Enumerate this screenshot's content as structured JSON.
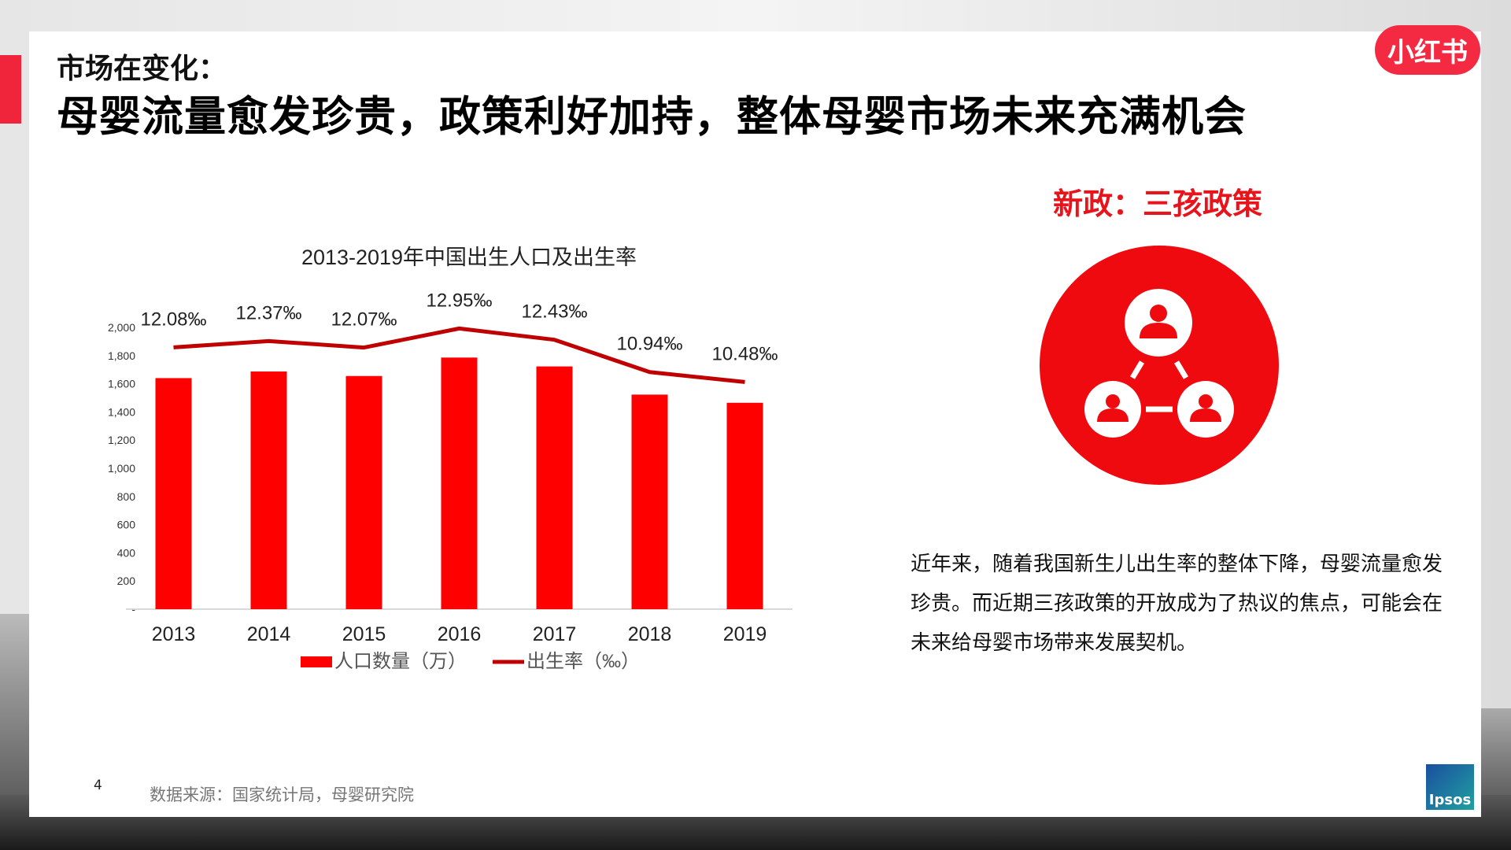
{
  "header": {
    "subtitle": "市场在变化：",
    "title": "母婴流量愈发珍贵，政策利好加持，整体母婴市场未来充满机会",
    "logo_text": "小红书"
  },
  "right_panel": {
    "policy_title": "新政：三孩政策",
    "icon": "family-network-icon",
    "paragraph": "近年来，随着我国新生儿出生率的整体下降，母婴流量愈发珍贵。而近期三孩政策的开放成为了热议的焦点，可能会在未来给母婴市场带来发展契机。"
  },
  "footer": {
    "page_number": "4",
    "source": "数据来源：国家统计局，母婴研究院",
    "ipsos_logo": "Ipsos"
  },
  "colors": {
    "accent": "#f0243a",
    "bar": "#ff0000",
    "line": "#c00000",
    "policy": "#e8141c"
  },
  "chart_data": {
    "type": "bar",
    "title": "2013-2019年中国出生人口及出生率",
    "categories": [
      "2013",
      "2014",
      "2015",
      "2016",
      "2017",
      "2018",
      "2019"
    ],
    "ylim": [
      0,
      2000
    ],
    "yticks": [
      "-",
      "200",
      "400",
      "600",
      "800",
      "1,000",
      "1,200",
      "1,400",
      "1,600",
      "1,800",
      "2,000"
    ],
    "y2lim": [
      0,
      13
    ],
    "grid": false,
    "legend_position": "bottom",
    "series": [
      {
        "name": "人口数量（万）",
        "type": "bar",
        "values": [
          1640,
          1687,
          1655,
          1786,
          1723,
          1523,
          1465
        ]
      },
      {
        "name": "出生率（‰）",
        "type": "line",
        "axis": "secondary",
        "values": [
          12.08,
          12.37,
          12.07,
          12.95,
          12.43,
          10.94,
          10.48
        ],
        "labels": [
          "12.08‰",
          "12.37‰",
          "12.07‰",
          "12.95‰",
          "12.43‰",
          "10.94‰",
          "10.48‰"
        ]
      }
    ]
  }
}
